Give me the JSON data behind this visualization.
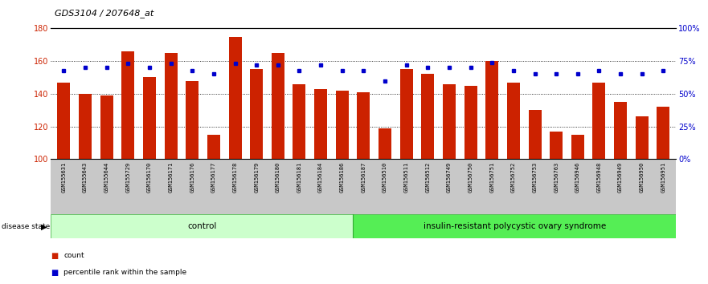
{
  "title": "GDS3104 / 207648_at",
  "samples": [
    "GSM155631",
    "GSM155643",
    "GSM155644",
    "GSM155729",
    "GSM156170",
    "GSM156171",
    "GSM156176",
    "GSM156177",
    "GSM156178",
    "GSM156179",
    "GSM156180",
    "GSM156181",
    "GSM156184",
    "GSM156186",
    "GSM156187",
    "GSM156510",
    "GSM156511",
    "GSM156512",
    "GSM156749",
    "GSM156750",
    "GSM156751",
    "GSM156752",
    "GSM156753",
    "GSM156763",
    "GSM156946",
    "GSM156948",
    "GSM156949",
    "GSM156950",
    "GSM156951"
  ],
  "counts": [
    147,
    140,
    139,
    166,
    150,
    165,
    148,
    115,
    175,
    155,
    165,
    146,
    143,
    142,
    141,
    119,
    155,
    152,
    146,
    145,
    160,
    147,
    130,
    117,
    115,
    147,
    135,
    126,
    132
  ],
  "percentile_ranks": [
    68,
    70,
    70,
    73,
    70,
    73,
    68,
    65,
    73,
    72,
    72,
    68,
    72,
    68,
    68,
    60,
    72,
    70,
    70,
    70,
    74,
    68,
    65,
    65,
    65,
    68,
    65,
    65,
    68
  ],
  "control_count": 14,
  "group1_label": "control",
  "group2_label": "insulin-resistant polycystic ovary syndrome",
  "disease_state_label": "disease state",
  "bar_color": "#cc2200",
  "dot_color": "#0000cc",
  "ylim_left": [
    100,
    180
  ],
  "ylim_right": [
    0,
    100
  ],
  "yticks_left": [
    100,
    120,
    140,
    160,
    180
  ],
  "yticks_right": [
    0,
    25,
    50,
    75,
    100
  ],
  "ytick_labels_right": [
    "0%",
    "25%",
    "50%",
    "75%",
    "100%"
  ],
  "background_color": "#ffffff",
  "plot_bg": "#ffffff",
  "grid_color": "#000000",
  "legend_count_label": "count",
  "legend_pct_label": "percentile rank within the sample",
  "ctrl_color": "#ccffcc",
  "pcos_color": "#55ee55"
}
